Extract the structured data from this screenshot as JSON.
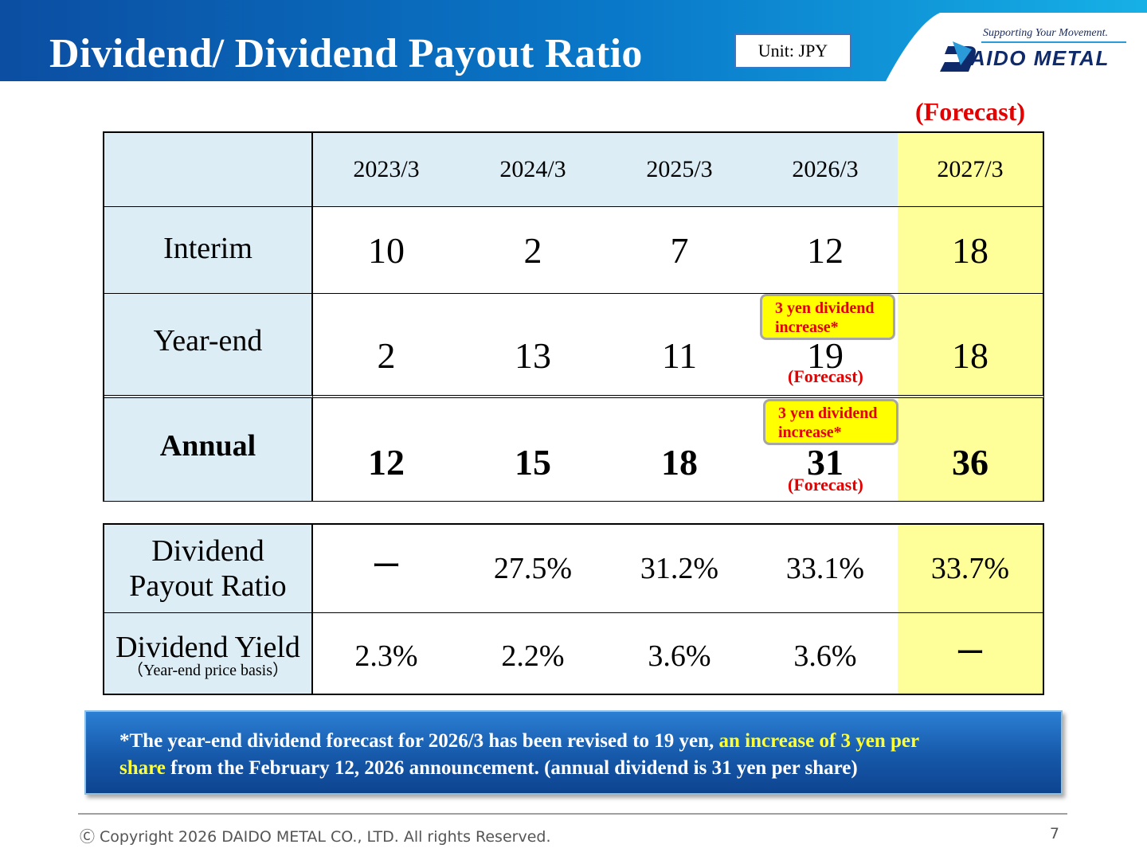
{
  "header": {
    "title": "Dividend/ Dividend Payout Ratio",
    "unit": "Unit: JPY",
    "tagline": "Supporting Your Movement.",
    "logo": "AIDO METAL"
  },
  "forecast_label": "(Forecast)",
  "dividend_table": {
    "years": [
      "2023/3",
      "2024/3",
      "2025/3",
      "2026/3",
      "2027/3"
    ],
    "rows": [
      {
        "label": "Interim",
        "values": [
          "10",
          "2",
          "7",
          "12",
          "18"
        ]
      },
      {
        "label": "Year-end",
        "values": [
          "2",
          "13",
          "11",
          "19",
          "18"
        ]
      },
      {
        "label": "Annual",
        "values": [
          "12",
          "15",
          "18",
          "31",
          "36"
        ]
      }
    ],
    "callouts": {
      "year_end": {
        "line1": "3 yen dividend",
        "line2": "increase*",
        "note": "(Forecast)"
      },
      "annual": {
        "line1": "3 yen dividend",
        "line2": "increase*",
        "note": "(Forecast)"
      }
    }
  },
  "ratio_table": {
    "rows": [
      {
        "label_line1": "Dividend",
        "label_line2": "Payout Ratio",
        "values": [
          "ー",
          "27.5%",
          "31.2%",
          "33.1%",
          "33.7%"
        ]
      },
      {
        "label_line1": "Dividend Yield",
        "label_line2": "（Year-end price basis）",
        "values": [
          "2.3%",
          "2.2%",
          "3.6%",
          "3.6%",
          "ー"
        ]
      }
    ]
  },
  "note": {
    "part1": "*The year-end dividend forecast for 2026/3 has been revised to 19 yen, ",
    "highlight1": "an increase of 3 yen per",
    "highlight2": "share",
    "part2": " from the February 12, 2026 announcement. (annual dividend is 31 yen per share)"
  },
  "footer": {
    "copyright": "Ⓒ Copyright 2026 DAIDO METAL CO., LTD. All rights Reserved.",
    "page_number": "7"
  },
  "colors": {
    "header_blue": "#0b4ea2",
    "header_light": "#15a8e0",
    "header_cell": "#dcedf5",
    "forecast_cell": "#ffff99",
    "accent_red": "#e30000",
    "note_highlight": "#ffff33"
  }
}
